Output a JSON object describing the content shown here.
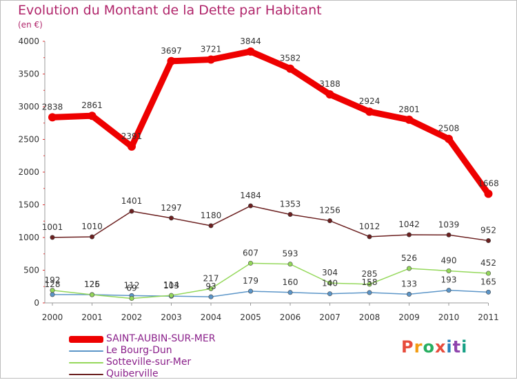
{
  "title": "Evolution du Montant de la Dette par Habitant",
  "subtitle": "(en €)",
  "logo": {
    "text": "Proxiti",
    "colors": [
      "#e74c3c",
      "#f39c12",
      "#27ae60",
      "#e74c3c",
      "#2980b9",
      "#8e44ad",
      "#16a085"
    ]
  },
  "chart_data": {
    "type": "line",
    "title": "Evolution du Montant de la Dette par Habitant",
    "subtitle": "(en €)",
    "x": [
      "2000",
      "2001",
      "2002",
      "2003",
      "2004",
      "2005",
      "2006",
      "2007",
      "2008",
      "2009",
      "2010",
      "2011"
    ],
    "ylim": [
      0,
      4000
    ],
    "yticks": [
      0,
      500,
      1000,
      1500,
      2000,
      2500,
      3000,
      3500,
      4000
    ],
    "grid": false,
    "legend": "bottom-left",
    "series": [
      {
        "name": "SAINT-AUBIN-SUR-MER",
        "color": "#ee0000",
        "values": [
          2838,
          2861,
          2391,
          3697,
          3721,
          3844,
          3582,
          3188,
          2924,
          2801,
          2508,
          1668
        ]
      },
      {
        "name": "Le Bourg-Dun",
        "color": "#5b95c8",
        "values": [
          128,
          126,
          112,
          103,
          93,
          179,
          160,
          140,
          158,
          133,
          193,
          165
        ]
      },
      {
        "name": "Sotteville-sur-Mer",
        "color": "#94d85a",
        "values": [
          192,
          125,
          69,
          114,
          217,
          607,
          593,
          304,
          285,
          526,
          490,
          452
        ]
      },
      {
        "name": "Quiberville",
        "color": "#6b1f1f",
        "values": [
          1001,
          1010,
          1401,
          1297,
          1180,
          1484,
          1353,
          1256,
          1012,
          1042,
          1039,
          952
        ]
      }
    ]
  }
}
